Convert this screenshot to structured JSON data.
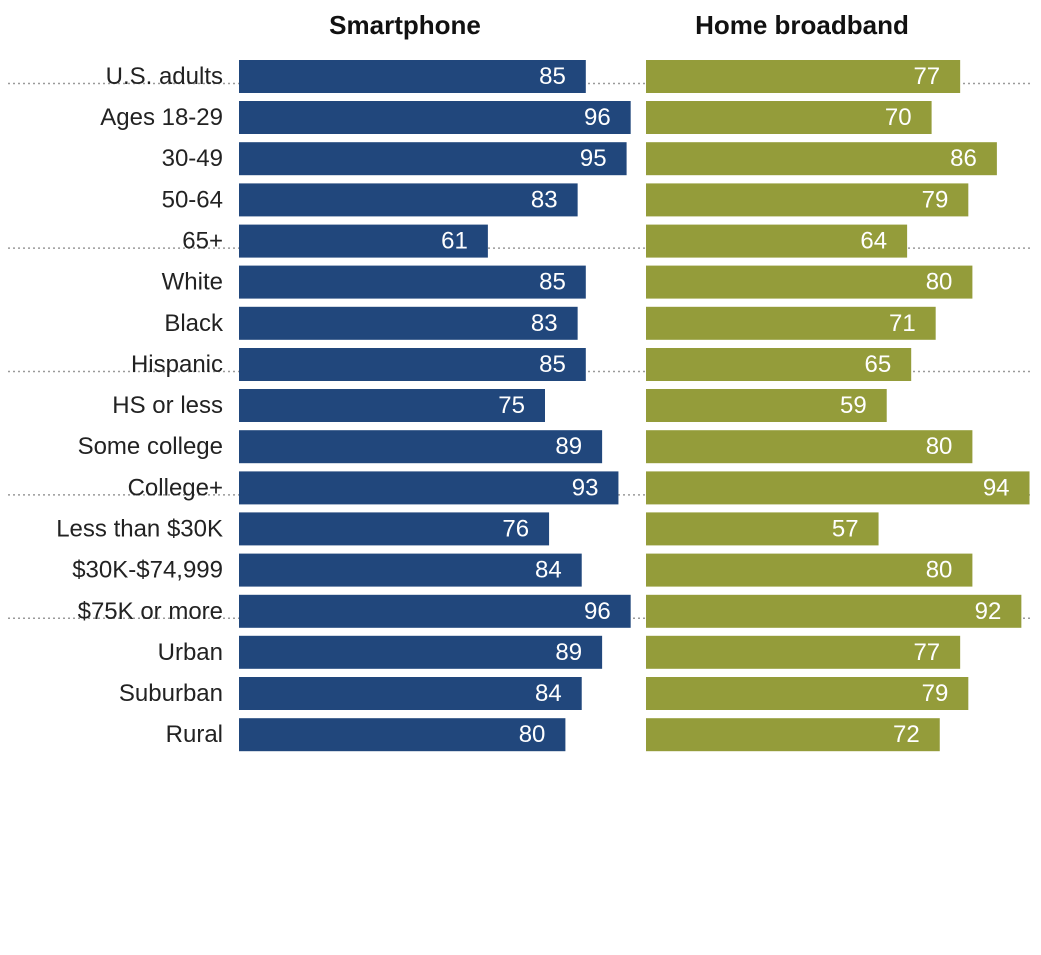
{
  "chart_data": {
    "type": "bar",
    "orientation": "horizontal",
    "categories": [
      "U.S. adults",
      "Ages 18-29",
      "30-49",
      "50-64",
      "65+",
      "White",
      "Black",
      "Hispanic",
      "HS or less",
      "Some college",
      "College+",
      "Less than $30K",
      "$30K-$74,999",
      "$75K or more",
      "Urban",
      "Suburban",
      "Rural"
    ],
    "groups": [
      [
        0
      ],
      [
        1,
        2,
        3,
        4
      ],
      [
        5,
        6,
        7
      ],
      [
        8,
        9,
        10
      ],
      [
        11,
        12,
        13
      ],
      [
        14,
        15,
        16
      ]
    ],
    "series": [
      {
        "name": "Smartphone",
        "color": "#21477c",
        "values": [
          85,
          96,
          95,
          83,
          61,
          85,
          83,
          85,
          75,
          89,
          93,
          76,
          84,
          96,
          89,
          84,
          80
        ]
      },
      {
        "name": "Home broadband",
        "color": "#949c3a",
        "values": [
          77,
          70,
          86,
          79,
          64,
          80,
          71,
          65,
          59,
          80,
          94,
          57,
          80,
          92,
          77,
          79,
          72
        ]
      }
    ],
    "data_labels": true,
    "grid": false,
    "legend": "column-headers"
  }
}
